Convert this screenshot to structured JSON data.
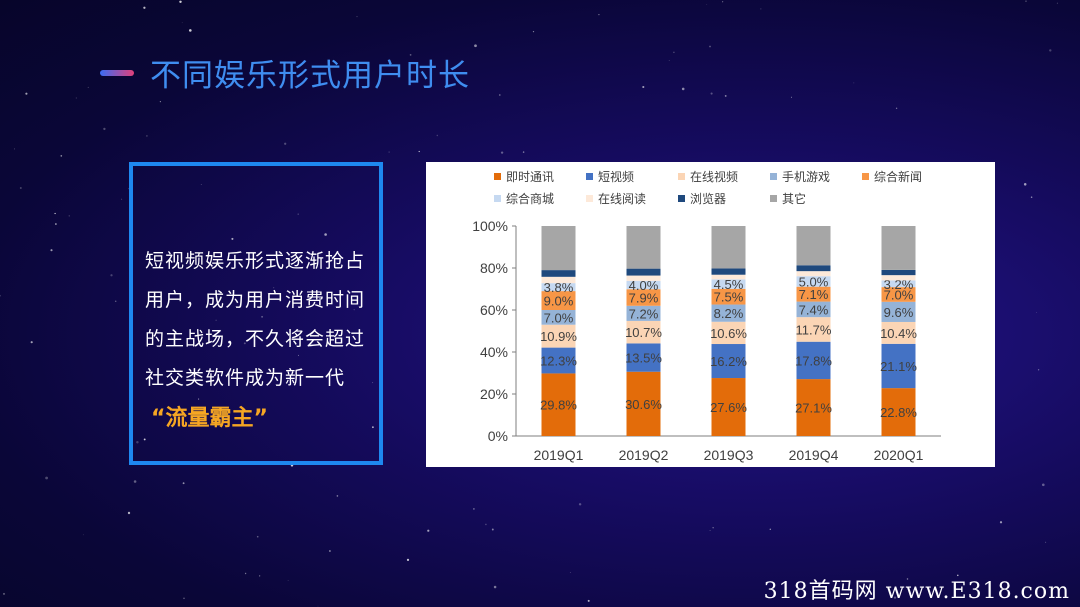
{
  "page": {
    "title": "不同娱乐形式用户时长"
  },
  "textbox": {
    "lines": [
      "短视频娱乐形式逐渐抢占",
      "用户，成为用户消费时间",
      "的主战场，不久将会超过",
      "社交类软件成为新一代"
    ],
    "highlight": "“流量霸主”"
  },
  "watermark": "318首码网 www.E318.com",
  "colors": {
    "accent": "#1e88f0",
    "title": "#3f8df0",
    "highlight": "#f5a623"
  },
  "chart_data": {
    "type": "bar",
    "stacked": true,
    "categories": [
      "2019Q1",
      "2019Q2",
      "2019Q3",
      "2019Q4",
      "2020Q1"
    ],
    "ylim": [
      0,
      100
    ],
    "yticks": [
      "0%",
      "20%",
      "40%",
      "60%",
      "80%",
      "100%"
    ],
    "legend_position": "top",
    "series": [
      {
        "name": "即时通讯",
        "color": "#e36c0a",
        "values": [
          29.8,
          30.6,
          27.6,
          27.1,
          22.8
        ],
        "labels": [
          "29.8%",
          "30.6%",
          "27.6%",
          "27.1%",
          "22.8%"
        ]
      },
      {
        "name": "短视频",
        "color": "#4472c4",
        "values": [
          12.3,
          13.5,
          16.2,
          17.8,
          21.1
        ],
        "labels": [
          "12.3%",
          "13.5%",
          "16.2%",
          "17.8%",
          "21.1%"
        ]
      },
      {
        "name": "在线视频",
        "color": "#fbd5b5",
        "values": [
          10.9,
          10.7,
          10.6,
          11.7,
          10.4
        ],
        "labels": [
          "10.9%",
          "10.7%",
          "10.6%",
          "11.7%",
          "10.4%"
        ]
      },
      {
        "name": "手机游戏",
        "color": "#95b3d7",
        "values": [
          7.0,
          7.2,
          8.2,
          7.4,
          9.6
        ],
        "labels": [
          "7.0%",
          "7.2%",
          "8.2%",
          "7.4%",
          "9.6%"
        ]
      },
      {
        "name": "综合新闻",
        "color": "#f79646",
        "values": [
          9.0,
          7.9,
          7.5,
          7.1,
          7.0
        ],
        "labels": [
          "9.0%",
          "7.9%",
          "7.5%",
          "7.1%",
          "7.0%"
        ]
      },
      {
        "name": "综合商城",
        "color": "#c6d9f1",
        "values": [
          3.8,
          4.0,
          4.5,
          5.0,
          3.2
        ],
        "labels": [
          "3.8%",
          "4.0%",
          "4.5%",
          "5.0%",
          "3.2%"
        ]
      },
      {
        "name": "在线阅读",
        "color": "#fde9d9",
        "values": [
          3.0,
          2.5,
          2.2,
          2.4,
          2.5
        ],
        "labels": []
      },
      {
        "name": "浏览器",
        "color": "#1f497d",
        "values": [
          3.2,
          3.3,
          3.0,
          2.8,
          2.5
        ],
        "labels": []
      },
      {
        "name": "其它",
        "color": "#a6a6a6",
        "values": [
          21.0,
          20.3,
          20.2,
          18.7,
          20.9
        ],
        "labels": []
      }
    ]
  }
}
